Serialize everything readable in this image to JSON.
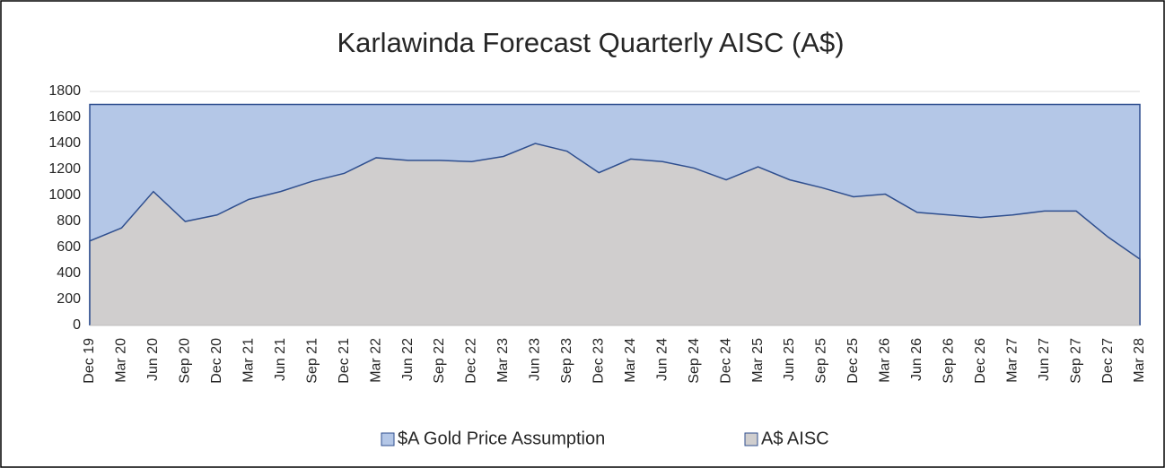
{
  "chart_data": {
    "type": "area",
    "title": "Karlawinda Forecast Quarterly AISC (A$)",
    "categories": [
      "Dec 19",
      "Mar 20",
      "Jun 20",
      "Sep 20",
      "Dec 20",
      "Mar 21",
      "Jun 21",
      "Sep 21",
      "Dec 21",
      "Mar 22",
      "Jun 22",
      "Sep 22",
      "Dec 22",
      "Mar 23",
      "Jun 23",
      "Sep 23",
      "Dec 23",
      "Mar 24",
      "Jun 24",
      "Sep 24",
      "Dec 24",
      "Mar 25",
      "Jun 25",
      "Sep 25",
      "Dec 25",
      "Mar 26",
      "Jun 26",
      "Sep 26",
      "Dec 26",
      "Mar 27",
      "Jun 27",
      "Sep 27",
      "Dec 27",
      "Mar 28"
    ],
    "series": [
      {
        "name": "$A Gold Price Assumption",
        "color": "#b4c7e7",
        "values": [
          1700,
          1700,
          1700,
          1700,
          1700,
          1700,
          1700,
          1700,
          1700,
          1700,
          1700,
          1700,
          1700,
          1700,
          1700,
          1700,
          1700,
          1700,
          1700,
          1700,
          1700,
          1700,
          1700,
          1700,
          1700,
          1700,
          1700,
          1700,
          1700,
          1700,
          1700,
          1700,
          1700,
          1700
        ]
      },
      {
        "name": "A$ AISC",
        "color": "#d0cece",
        "values": [
          650,
          750,
          1030,
          800,
          850,
          970,
          1030,
          1110,
          1170,
          1290,
          1270,
          1270,
          1260,
          1300,
          1400,
          1340,
          1175,
          1280,
          1260,
          1210,
          1120,
          1220,
          1120,
          1060,
          990,
          1010,
          870,
          850,
          830,
          850,
          880,
          880,
          680,
          510
        ]
      }
    ],
    "line_color": "#2f4f8f",
    "ylim": [
      0,
      1800
    ],
    "yticks": [
      0,
      200,
      400,
      600,
      800,
      1000,
      1200,
      1400,
      1600,
      1800
    ],
    "grid": true,
    "legend": "bottom"
  }
}
